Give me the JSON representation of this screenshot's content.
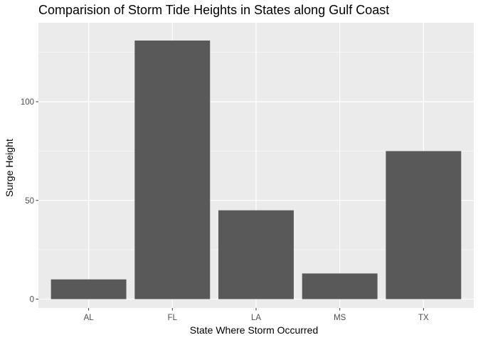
{
  "chart_data": {
    "type": "bar",
    "title": "Comparision of Storm Tide Heights in States along Gulf Coast",
    "xlabel": "State Where Storm Occurred",
    "ylabel": "Surge Height",
    "categories": [
      "AL",
      "FL",
      "LA",
      "MS",
      "TX"
    ],
    "values": [
      10,
      131,
      45,
      13,
      75
    ],
    "ylim": [
      -4.5,
      140
    ],
    "yticks": [
      0,
      50,
      100
    ],
    "ytick_labels": [
      "0",
      "50",
      "100"
    ],
    "grid": true,
    "legend": "none",
    "colors": {
      "panel_bg": "#ebebeb",
      "grid_major": "#ffffff",
      "bar_fill": "#595959",
      "tick_mark": "#333333"
    }
  }
}
